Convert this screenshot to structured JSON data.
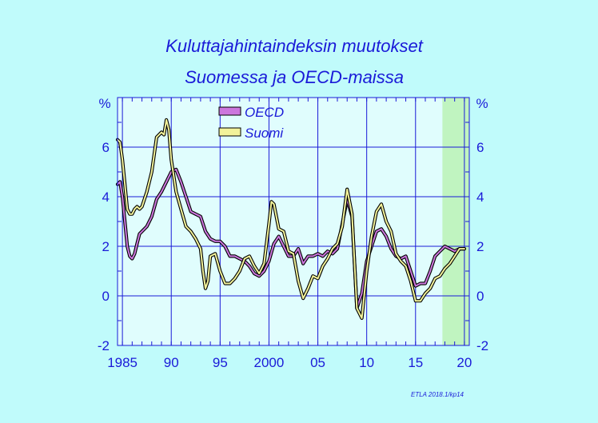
{
  "chart_data": {
    "type": "line",
    "title": "Kuluttajahintaindeksin  muutokset",
    "subtitle": "Suomessa  ja  OECD-maissa",
    "yunit_left": "%",
    "yunit_right": "%",
    "xlim": [
      1984.5,
      2020.5
    ],
    "ylim": [
      -2,
      8
    ],
    "yticks": [
      -2,
      0,
      2,
      4,
      6
    ],
    "xticks": [
      {
        "value": 1985,
        "label": "1985"
      },
      {
        "value": 1990,
        "label": "90"
      },
      {
        "value": 1995,
        "label": "95"
      },
      {
        "value": 2000,
        "label": "2000"
      },
      {
        "value": 2005,
        "label": "05"
      },
      {
        "value": 2010,
        "label": "10"
      },
      {
        "value": 2015,
        "label": "15"
      },
      {
        "value": 2020,
        "label": "20"
      }
    ],
    "forecast_start": 2017.75,
    "grid": true,
    "legend_position": "top-center",
    "colors": {
      "background": "#c0fbfb",
      "plot": "#e0fdfd",
      "forecast": "#c0f4c0",
      "grid": "#1a1ad8",
      "oecd": "#cc77dd",
      "suomi": "#f2f29a",
      "outline": "#000000"
    },
    "series": [
      {
        "name": "OECD",
        "x": [
          1984.5,
          1984.75,
          1985,
          1985.25,
          1985.5,
          1985.75,
          1986,
          1986.25,
          1986.5,
          1986.75,
          1987,
          1987.5,
          1988,
          1988.5,
          1989,
          1989.5,
          1990,
          1990.5,
          1991,
          1991.5,
          1992,
          1992.5,
          1993,
          1993.5,
          1994,
          1994.5,
          1995,
          1995.5,
          1996,
          1996.5,
          1997,
          1997.5,
          1998,
          1998.5,
          1999,
          1999.5,
          2000,
          2000.5,
          2001,
          2001.5,
          2002,
          2002.5,
          2003,
          2003.5,
          2004,
          2004.5,
          2005,
          2005.5,
          2006,
          2006.5,
          2007,
          2007.5,
          2008,
          2008.5,
          2009,
          2009.5,
          2010,
          2010.5,
          2011,
          2011.5,
          2012,
          2012.5,
          2013,
          2013.5,
          2014,
          2014.5,
          2015,
          2015.5,
          2016,
          2016.5,
          2017,
          2017.5,
          2018,
          2018.5,
          2019,
          2019.5,
          2020
        ],
        "values": [
          4.5,
          4.6,
          4.0,
          3.0,
          2.0,
          1.6,
          1.5,
          1.7,
          2.1,
          2.5,
          2.6,
          2.8,
          3.2,
          3.9,
          4.2,
          4.6,
          5.0,
          5.1,
          4.6,
          4.0,
          3.4,
          3.3,
          3.2,
          2.6,
          2.3,
          2.2,
          2.2,
          2.0,
          1.6,
          1.6,
          1.5,
          1.4,
          1.2,
          0.9,
          0.8,
          1.0,
          1.4,
          2.1,
          2.4,
          2.0,
          1.6,
          1.6,
          1.9,
          1.3,
          1.6,
          1.6,
          1.7,
          1.6,
          1.8,
          1.7,
          1.9,
          2.9,
          3.9,
          3.2,
          -0.5,
          0.1,
          1.4,
          2.0,
          2.6,
          2.7,
          2.4,
          1.9,
          1.6,
          1.5,
          1.6,
          1.0,
          0.4,
          0.5,
          0.5,
          1.0,
          1.6,
          1.8,
          2.0,
          1.9,
          1.8,
          1.9,
          1.9
        ]
      },
      {
        "name": "Suomi",
        "x": [
          1984.5,
          1984.75,
          1985,
          1985.25,
          1985.5,
          1985.75,
          1986,
          1986.25,
          1986.5,
          1986.75,
          1987,
          1987.5,
          1988,
          1988.5,
          1989,
          1989.25,
          1989.5,
          1989.75,
          1990,
          1990.5,
          1991,
          1991.5,
          1992,
          1992.5,
          1993,
          1993.25,
          1993.5,
          1993.75,
          1994,
          1994.5,
          1995,
          1995.5,
          1996,
          1996.5,
          1997,
          1997.5,
          1998,
          1998.5,
          1999,
          1999.5,
          2000,
          2000.25,
          2000.5,
          2001,
          2001.5,
          2002,
          2002.5,
          2003,
          2003.5,
          2004,
          2004.5,
          2005,
          2005.5,
          2006,
          2006.5,
          2007,
          2007.5,
          2008,
          2008.5,
          2009,
          2009.5,
          2010,
          2010.5,
          2011,
          2011.5,
          2012,
          2012.5,
          2013,
          2013.5,
          2014,
          2014.5,
          2015,
          2015.5,
          2016,
          2016.5,
          2017,
          2017.5,
          2018,
          2018.5,
          2019,
          2019.5,
          2020
        ],
        "values": [
          6.3,
          6.2,
          5.5,
          4.5,
          3.5,
          3.3,
          3.3,
          3.5,
          3.6,
          3.5,
          3.6,
          4.2,
          5.0,
          6.4,
          6.6,
          6.5,
          7.1,
          6.7,
          5.5,
          4.2,
          3.5,
          2.8,
          2.6,
          2.3,
          1.9,
          1.0,
          0.3,
          0.6,
          1.6,
          1.7,
          1.0,
          0.5,
          0.5,
          0.7,
          1.0,
          1.5,
          1.6,
          1.2,
          0.9,
          1.3,
          2.9,
          3.8,
          3.7,
          2.7,
          2.6,
          1.8,
          1.7,
          0.6,
          -0.1,
          0.3,
          0.8,
          0.7,
          1.2,
          1.5,
          1.9,
          2.1,
          2.8,
          4.3,
          3.3,
          -0.5,
          -0.9,
          1.0,
          2.4,
          3.4,
          3.7,
          3.0,
          2.6,
          1.7,
          1.4,
          1.2,
          0.6,
          -0.2,
          -0.2,
          0.1,
          0.3,
          0.7,
          0.8,
          1.1,
          1.3,
          1.6,
          1.9,
          1.9
        ]
      }
    ]
  },
  "footer": {
    "credit": "ETLA 2018.1/kp14"
  }
}
